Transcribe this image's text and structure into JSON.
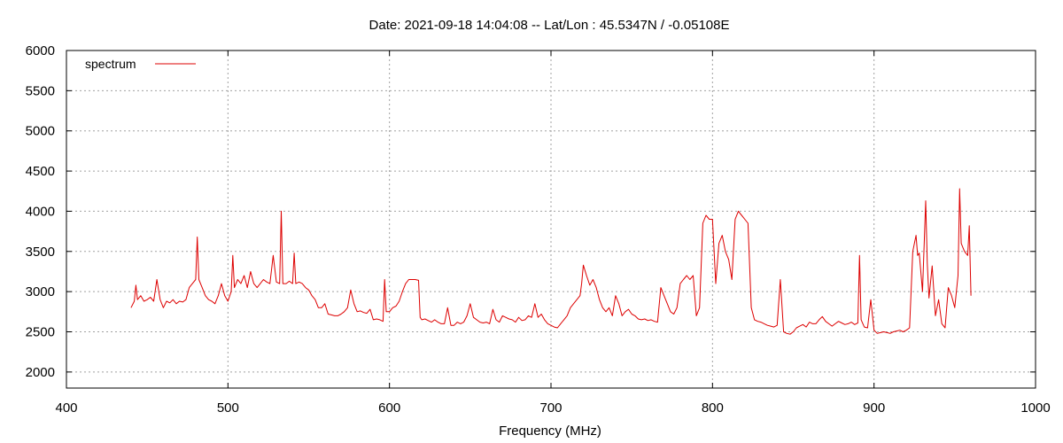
{
  "chart_data": {
    "type": "line",
    "title": "Date: 2021-09-18 14:04:08  --  Lat/Lon : 45.5347N / -0.05108E",
    "xlabel": "Frequency (MHz)",
    "ylabel": "",
    "xlim": [
      400,
      1000
    ],
    "ylim": [
      1800,
      6000
    ],
    "xticks": [
      400,
      500,
      600,
      700,
      800,
      900,
      1000
    ],
    "yticks": [
      2000,
      2500,
      3000,
      3500,
      4000,
      4500,
      5000,
      5500,
      6000
    ],
    "grid": true,
    "legend_position": "top-left",
    "series": [
      {
        "name": "spectrum",
        "color": "#dd0000",
        "x": [
          440,
          442,
          443,
          444,
          446,
          448,
          450,
          452,
          454,
          456,
          458,
          460,
          462,
          464,
          466,
          468,
          470,
          472,
          474,
          476,
          478,
          480,
          481,
          482,
          484,
          486,
          488,
          490,
          492,
          494,
          496,
          498,
          500,
          502,
          503,
          504,
          506,
          508,
          510,
          512,
          514,
          516,
          518,
          520,
          522,
          524,
          526,
          528,
          530,
          532,
          533,
          534,
          536,
          538,
          540,
          541,
          542,
          544,
          546,
          548,
          550,
          552,
          554,
          556,
          558,
          560,
          562,
          564,
          566,
          568,
          570,
          572,
          574,
          576,
          578,
          580,
          582,
          584,
          586,
          588,
          590,
          592,
          594,
          596,
          597,
          598,
          600,
          602,
          604,
          606,
          608,
          610,
          612,
          614,
          616,
          618,
          619,
          620,
          622,
          624,
          626,
          628,
          630,
          632,
          634,
          636,
          638,
          640,
          642,
          644,
          646,
          648,
          650,
          652,
          654,
          656,
          658,
          660,
          662,
          664,
          666,
          668,
          670,
          672,
          674,
          676,
          678,
          680,
          682,
          684,
          686,
          688,
          690,
          692,
          694,
          696,
          698,
          700,
          702,
          704,
          706,
          708,
          710,
          712,
          714,
          716,
          718,
          719,
          720,
          722,
          724,
          726,
          728,
          730,
          732,
          734,
          736,
          738,
          740,
          742,
          744,
          746,
          748,
          750,
          752,
          754,
          756,
          758,
          760,
          762,
          764,
          766,
          768,
          770,
          772,
          774,
          776,
          778,
          780,
          782,
          784,
          786,
          788,
          790,
          792,
          794,
          796,
          798,
          800,
          802,
          804,
          806,
          808,
          810,
          812,
          814,
          816,
          818,
          820,
          822,
          824,
          826,
          828,
          830,
          832,
          834,
          836,
          838,
          840,
          842,
          844,
          846,
          848,
          850,
          852,
          854,
          856,
          858,
          860,
          862,
          864,
          866,
          868,
          870,
          872,
          874,
          876,
          878,
          880,
          882,
          884,
          886,
          888,
          890,
          891,
          892,
          894,
          896,
          898,
          900,
          902,
          904,
          906,
          908,
          910,
          912,
          914,
          916,
          918,
          920,
          922,
          924,
          926,
          927,
          928,
          930,
          932,
          933,
          934,
          936,
          938,
          940,
          942,
          944,
          946,
          948,
          950,
          952,
          953,
          954,
          956,
          958,
          959,
          960
        ],
        "y": [
          2800,
          2880,
          3080,
          2900,
          2950,
          2880,
          2900,
          2930,
          2880,
          3150,
          2900,
          2800,
          2880,
          2860,
          2900,
          2850,
          2880,
          2870,
          2900,
          3050,
          3100,
          3150,
          3680,
          3150,
          3050,
          2950,
          2900,
          2880,
          2850,
          2950,
          3100,
          2950,
          2880,
          3000,
          3450,
          3050,
          3150,
          3100,
          3200,
          3050,
          3250,
          3100,
          3050,
          3100,
          3150,
          3120,
          3100,
          3450,
          3120,
          3100,
          4000,
          3100,
          3100,
          3130,
          3100,
          3480,
          3100,
          3120,
          3100,
          3050,
          3020,
          2950,
          2900,
          2800,
          2800,
          2850,
          2720,
          2710,
          2700,
          2700,
          2720,
          2750,
          2800,
          3020,
          2850,
          2750,
          2760,
          2740,
          2730,
          2780,
          2650,
          2660,
          2650,
          2630,
          3150,
          2750,
          2750,
          2800,
          2820,
          2880,
          3000,
          3100,
          3150,
          3150,
          3150,
          3140,
          2680,
          2650,
          2660,
          2640,
          2620,
          2650,
          2620,
          2600,
          2600,
          2800,
          2580,
          2580,
          2620,
          2600,
          2620,
          2700,
          2850,
          2680,
          2650,
          2620,
          2610,
          2620,
          2600,
          2780,
          2650,
          2620,
          2700,
          2680,
          2660,
          2650,
          2620,
          2680,
          2640,
          2650,
          2700,
          2680,
          2850,
          2680,
          2720,
          2650,
          2600,
          2580,
          2560,
          2550,
          2600,
          2650,
          2700,
          2800,
          2850,
          2900,
          2950,
          3100,
          3330,
          3200,
          3080,
          3150,
          3050,
          2900,
          2800,
          2750,
          2800,
          2700,
          2950,
          2850,
          2700,
          2750,
          2780,
          2720,
          2700,
          2660,
          2650,
          2660,
          2640,
          2650,
          2630,
          2620,
          3050,
          2950,
          2850,
          2750,
          2720,
          2800,
          3100,
          3150,
          3200,
          3150,
          3200,
          2700,
          2800,
          3850,
          3950,
          3900,
          3900,
          3100,
          3600,
          3700,
          3500,
          3400,
          3150,
          3900,
          4000,
          3950,
          3900,
          3850,
          2800,
          2650,
          2630,
          2620,
          2600,
          2580,
          2570,
          2560,
          2580,
          3150,
          2500,
          2480,
          2470,
          2500,
          2550,
          2570,
          2590,
          2560,
          2620,
          2600,
          2600,
          2650,
          2690,
          2630,
          2600,
          2570,
          2600,
          2630,
          2610,
          2590,
          2600,
          2620,
          2590,
          2610,
          3450,
          2650,
          2560,
          2550,
          2900,
          2520,
          2480,
          2490,
          2500,
          2490,
          2480,
          2500,
          2510,
          2520,
          2500,
          2520,
          2550,
          3500,
          3700,
          3450,
          3480,
          3000,
          4130,
          3350,
          2920,
          3320,
          2700,
          2900,
          2600,
          2550,
          3050,
          2950,
          2800,
          3200,
          4280,
          3600,
          3500,
          3450,
          3820,
          2950
        ]
      }
    ]
  }
}
